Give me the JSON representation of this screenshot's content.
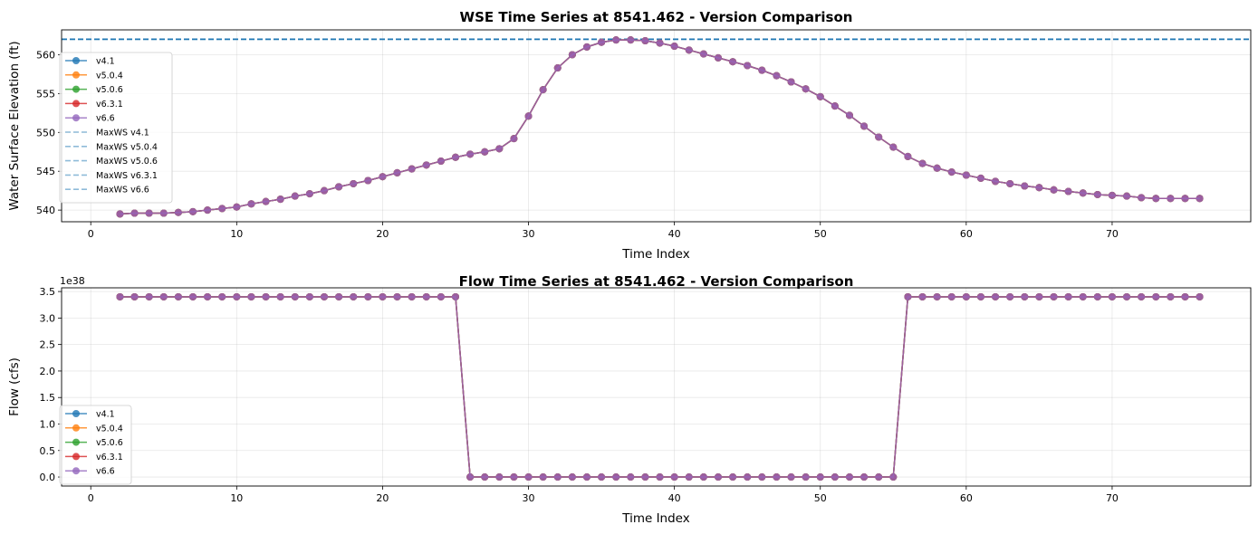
{
  "chart_data": [
    {
      "type": "line",
      "title": "WSE Time Series at 8541.462 - Version Comparison",
      "xlabel": "Time Index",
      "ylabel": "Water Surface Elevation (ft)",
      "xlim": [
        -2,
        79.5
      ],
      "ylim": [
        538.5,
        563.2
      ],
      "xticks": [
        0,
        10,
        20,
        30,
        40,
        50,
        60,
        70
      ],
      "yticks": [
        540,
        545,
        550,
        555,
        560
      ],
      "grid": true,
      "legend_position": "upper-left",
      "x": [
        2,
        3,
        4,
        5,
        6,
        7,
        8,
        9,
        10,
        11,
        12,
        13,
        14,
        15,
        16,
        17,
        18,
        19,
        20,
        21,
        22,
        23,
        24,
        25,
        26,
        27,
        28,
        29,
        30,
        31,
        32,
        33,
        34,
        35,
        36,
        37,
        38,
        39,
        40,
        41,
        42,
        43,
        44,
        45,
        46,
        47,
        48,
        49,
        50,
        51,
        52,
        53,
        54,
        55,
        56,
        57,
        58,
        59,
        60,
        61,
        62,
        63,
        64,
        65,
        66,
        67,
        68,
        69,
        70,
        71,
        72,
        73,
        74,
        75,
        76
      ],
      "series": [
        {
          "name": "v4.1",
          "color": "#1f77b4",
          "values": [
            539.5,
            539.6,
            539.6,
            539.6,
            539.7,
            539.8,
            540.0,
            540.2,
            540.4,
            540.8,
            541.1,
            541.4,
            541.8,
            542.1,
            542.5,
            543.0,
            543.4,
            543.8,
            544.3,
            544.8,
            545.3,
            545.8,
            546.3,
            546.8,
            547.2,
            547.5,
            547.9,
            549.2,
            552.1,
            555.5,
            558.3,
            560.0,
            561.0,
            561.6,
            561.9,
            561.9,
            561.8,
            561.5,
            561.1,
            560.6,
            560.1,
            559.6,
            559.1,
            558.6,
            558.0,
            557.3,
            556.5,
            555.6,
            554.6,
            553.4,
            552.2,
            550.8,
            549.4,
            548.1,
            546.9,
            546.0,
            545.4,
            544.9,
            544.5,
            544.1,
            543.7,
            543.4,
            543.1,
            542.9,
            542.6,
            542.4,
            542.2,
            542.0,
            541.9,
            541.8,
            541.6,
            541.5,
            541.5,
            541.5,
            541.5
          ]
        },
        {
          "name": "v5.0.4",
          "color": "#ff7f0e",
          "values": [
            539.5,
            539.6,
            539.6,
            539.6,
            539.7,
            539.8,
            540.0,
            540.2,
            540.4,
            540.8,
            541.1,
            541.4,
            541.8,
            542.1,
            542.5,
            543.0,
            543.4,
            543.8,
            544.3,
            544.8,
            545.3,
            545.8,
            546.3,
            546.8,
            547.2,
            547.5,
            547.9,
            549.2,
            552.1,
            555.5,
            558.3,
            560.0,
            561.0,
            561.6,
            561.9,
            561.9,
            561.8,
            561.5,
            561.1,
            560.6,
            560.1,
            559.6,
            559.1,
            558.6,
            558.0,
            557.3,
            556.5,
            555.6,
            554.6,
            553.4,
            552.2,
            550.8,
            549.4,
            548.1,
            546.9,
            546.0,
            545.4,
            544.9,
            544.5,
            544.1,
            543.7,
            543.4,
            543.1,
            542.9,
            542.6,
            542.4,
            542.2,
            542.0,
            541.9,
            541.8,
            541.6,
            541.5,
            541.5,
            541.5,
            541.5
          ]
        },
        {
          "name": "v5.0.6",
          "color": "#2ca02c",
          "values": [
            539.5,
            539.6,
            539.6,
            539.6,
            539.7,
            539.8,
            540.0,
            540.2,
            540.4,
            540.8,
            541.1,
            541.4,
            541.8,
            542.1,
            542.5,
            543.0,
            543.4,
            543.8,
            544.3,
            544.8,
            545.3,
            545.8,
            546.3,
            546.8,
            547.2,
            547.5,
            547.9,
            549.2,
            552.1,
            555.5,
            558.3,
            560.0,
            561.0,
            561.6,
            561.9,
            561.9,
            561.8,
            561.5,
            561.1,
            560.6,
            560.1,
            559.6,
            559.1,
            558.6,
            558.0,
            557.3,
            556.5,
            555.6,
            554.6,
            553.4,
            552.2,
            550.8,
            549.4,
            548.1,
            546.9,
            546.0,
            545.4,
            544.9,
            544.5,
            544.1,
            543.7,
            543.4,
            543.1,
            542.9,
            542.6,
            542.4,
            542.2,
            542.0,
            541.9,
            541.8,
            541.6,
            541.5,
            541.5,
            541.5,
            541.5
          ]
        },
        {
          "name": "v6.3.1",
          "color": "#d62728",
          "values": [
            539.5,
            539.6,
            539.6,
            539.6,
            539.7,
            539.8,
            540.0,
            540.2,
            540.4,
            540.8,
            541.1,
            541.4,
            541.8,
            542.1,
            542.5,
            543.0,
            543.4,
            543.8,
            544.3,
            544.8,
            545.3,
            545.8,
            546.3,
            546.8,
            547.2,
            547.5,
            547.9,
            549.2,
            552.1,
            555.5,
            558.3,
            560.0,
            561.0,
            561.6,
            561.9,
            561.9,
            561.8,
            561.5,
            561.1,
            560.6,
            560.1,
            559.6,
            559.1,
            558.6,
            558.0,
            557.3,
            556.5,
            555.6,
            554.6,
            553.4,
            552.2,
            550.8,
            549.4,
            548.1,
            546.9,
            546.0,
            545.4,
            544.9,
            544.5,
            544.1,
            543.7,
            543.4,
            543.1,
            542.9,
            542.6,
            542.4,
            542.2,
            542.0,
            541.9,
            541.8,
            541.6,
            541.5,
            541.5,
            541.5,
            541.5
          ]
        },
        {
          "name": "v6.6",
          "color": "#9467bd",
          "values": [
            539.5,
            539.6,
            539.6,
            539.6,
            539.7,
            539.8,
            540.0,
            540.2,
            540.4,
            540.8,
            541.1,
            541.4,
            541.8,
            542.1,
            542.5,
            543.0,
            543.4,
            543.8,
            544.3,
            544.8,
            545.3,
            545.8,
            546.3,
            546.8,
            547.2,
            547.5,
            547.9,
            549.2,
            552.1,
            555.5,
            558.3,
            560.0,
            561.0,
            561.6,
            561.9,
            561.9,
            561.8,
            561.5,
            561.1,
            560.6,
            560.1,
            559.6,
            559.1,
            558.6,
            558.0,
            557.3,
            556.5,
            555.6,
            554.6,
            553.4,
            552.2,
            550.8,
            549.4,
            548.1,
            546.9,
            546.0,
            545.4,
            544.9,
            544.5,
            544.1,
            543.7,
            543.4,
            543.1,
            542.9,
            542.6,
            542.4,
            542.2,
            542.0,
            541.9,
            541.8,
            541.6,
            541.5,
            541.5,
            541.5,
            541.5
          ]
        }
      ],
      "reference_lines": [
        {
          "name": "MaxWS v4.1",
          "value": 562.0,
          "color": "#1f77b4"
        },
        {
          "name": "MaxWS v5.0.4",
          "value": 562.0,
          "color": "#1f77b4"
        },
        {
          "name": "MaxWS v5.0.6",
          "value": 562.0,
          "color": "#1f77b4"
        },
        {
          "name": "MaxWS v6.3.1",
          "value": 562.0,
          "color": "#1f77b4"
        },
        {
          "name": "MaxWS v6.6",
          "value": 562.0,
          "color": "#1f77b4"
        }
      ]
    },
    {
      "type": "line",
      "title": "Flow Time Series at 8541.462 - Version Comparison",
      "xlabel": "Time Index",
      "ylabel": "Flow (cfs)",
      "scale_label": "1e38",
      "xlim": [
        -2,
        79.5
      ],
      "ylim": [
        -0.17,
        3.57
      ],
      "xticks": [
        0,
        10,
        20,
        30,
        40,
        50,
        60,
        70
      ],
      "yticks": [
        0.0,
        0.5,
        1.0,
        1.5,
        2.0,
        2.5,
        3.0,
        3.5
      ],
      "ytick_labels": [
        "0.0",
        "0.5",
        "1.0",
        "1.5",
        "2.0",
        "2.5",
        "3.0",
        "3.5"
      ],
      "grid": true,
      "legend_position": "lower-left",
      "x": [
        2,
        3,
        4,
        5,
        6,
        7,
        8,
        9,
        10,
        11,
        12,
        13,
        14,
        15,
        16,
        17,
        18,
        19,
        20,
        21,
        22,
        23,
        24,
        25,
        26,
        27,
        28,
        29,
        30,
        31,
        32,
        33,
        34,
        35,
        36,
        37,
        38,
        39,
        40,
        41,
        42,
        43,
        44,
        45,
        46,
        47,
        48,
        49,
        50,
        51,
        52,
        53,
        54,
        55,
        56,
        57,
        58,
        59,
        60,
        61,
        62,
        63,
        64,
        65,
        66,
        67,
        68,
        69,
        70,
        71,
        72,
        73,
        74,
        75,
        76
      ],
      "series": [
        {
          "name": "v4.1",
          "color": "#1f77b4",
          "values": [
            3.4,
            3.4,
            3.4,
            3.4,
            3.4,
            3.4,
            3.4,
            3.4,
            3.4,
            3.4,
            3.4,
            3.4,
            3.4,
            3.4,
            3.4,
            3.4,
            3.4,
            3.4,
            3.4,
            3.4,
            3.4,
            3.4,
            3.4,
            3.4,
            0,
            0,
            0,
            0,
            0,
            0,
            0,
            0,
            0,
            0,
            0,
            0,
            0,
            0,
            0,
            0,
            0,
            0,
            0,
            0,
            0,
            0,
            0,
            0,
            0,
            0,
            0,
            0,
            0,
            0,
            3.4,
            3.4,
            3.4,
            3.4,
            3.4,
            3.4,
            3.4,
            3.4,
            3.4,
            3.4,
            3.4,
            3.4,
            3.4,
            3.4,
            3.4,
            3.4,
            3.4,
            3.4,
            3.4,
            3.4,
            3.4
          ]
        },
        {
          "name": "v5.0.4",
          "color": "#ff7f0e",
          "values": [
            3.4,
            3.4,
            3.4,
            3.4,
            3.4,
            3.4,
            3.4,
            3.4,
            3.4,
            3.4,
            3.4,
            3.4,
            3.4,
            3.4,
            3.4,
            3.4,
            3.4,
            3.4,
            3.4,
            3.4,
            3.4,
            3.4,
            3.4,
            3.4,
            0,
            0,
            0,
            0,
            0,
            0,
            0,
            0,
            0,
            0,
            0,
            0,
            0,
            0,
            0,
            0,
            0,
            0,
            0,
            0,
            0,
            0,
            0,
            0,
            0,
            0,
            0,
            0,
            0,
            0,
            3.4,
            3.4,
            3.4,
            3.4,
            3.4,
            3.4,
            3.4,
            3.4,
            3.4,
            3.4,
            3.4,
            3.4,
            3.4,
            3.4,
            3.4,
            3.4,
            3.4,
            3.4,
            3.4,
            3.4,
            3.4
          ]
        },
        {
          "name": "v5.0.6",
          "color": "#2ca02c",
          "values": [
            3.4,
            3.4,
            3.4,
            3.4,
            3.4,
            3.4,
            3.4,
            3.4,
            3.4,
            3.4,
            3.4,
            3.4,
            3.4,
            3.4,
            3.4,
            3.4,
            3.4,
            3.4,
            3.4,
            3.4,
            3.4,
            3.4,
            3.4,
            3.4,
            0,
            0,
            0,
            0,
            0,
            0,
            0,
            0,
            0,
            0,
            0,
            0,
            0,
            0,
            0,
            0,
            0,
            0,
            0,
            0,
            0,
            0,
            0,
            0,
            0,
            0,
            0,
            0,
            0,
            0,
            3.4,
            3.4,
            3.4,
            3.4,
            3.4,
            3.4,
            3.4,
            3.4,
            3.4,
            3.4,
            3.4,
            3.4,
            3.4,
            3.4,
            3.4,
            3.4,
            3.4,
            3.4,
            3.4,
            3.4,
            3.4
          ]
        },
        {
          "name": "v6.3.1",
          "color": "#d62728",
          "values": [
            3.4,
            3.4,
            3.4,
            3.4,
            3.4,
            3.4,
            3.4,
            3.4,
            3.4,
            3.4,
            3.4,
            3.4,
            3.4,
            3.4,
            3.4,
            3.4,
            3.4,
            3.4,
            3.4,
            3.4,
            3.4,
            3.4,
            3.4,
            3.4,
            0,
            0,
            0,
            0,
            0,
            0,
            0,
            0,
            0,
            0,
            0,
            0,
            0,
            0,
            0,
            0,
            0,
            0,
            0,
            0,
            0,
            0,
            0,
            0,
            0,
            0,
            0,
            0,
            0,
            0,
            3.4,
            3.4,
            3.4,
            3.4,
            3.4,
            3.4,
            3.4,
            3.4,
            3.4,
            3.4,
            3.4,
            3.4,
            3.4,
            3.4,
            3.4,
            3.4,
            3.4,
            3.4,
            3.4,
            3.4,
            3.4
          ]
        },
        {
          "name": "v6.6",
          "color": "#9467bd",
          "values": [
            3.4,
            3.4,
            3.4,
            3.4,
            3.4,
            3.4,
            3.4,
            3.4,
            3.4,
            3.4,
            3.4,
            3.4,
            3.4,
            3.4,
            3.4,
            3.4,
            3.4,
            3.4,
            3.4,
            3.4,
            3.4,
            3.4,
            3.4,
            3.4,
            0,
            0,
            0,
            0,
            0,
            0,
            0,
            0,
            0,
            0,
            0,
            0,
            0,
            0,
            0,
            0,
            0,
            0,
            0,
            0,
            0,
            0,
            0,
            0,
            0,
            0,
            0,
            0,
            0,
            0,
            3.4,
            3.4,
            3.4,
            3.4,
            3.4,
            3.4,
            3.4,
            3.4,
            3.4,
            3.4,
            3.4,
            3.4,
            3.4,
            3.4,
            3.4,
            3.4,
            3.4,
            3.4,
            3.4,
            3.4,
            3.4
          ]
        }
      ]
    }
  ]
}
